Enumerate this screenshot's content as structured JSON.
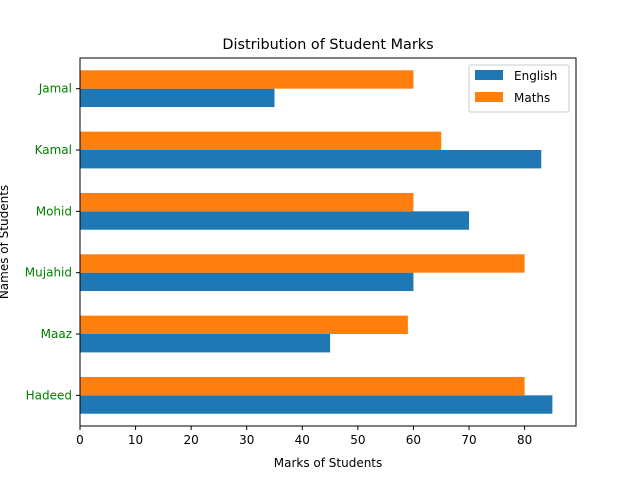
{
  "chart_data": {
    "type": "bar",
    "orientation": "horizontal",
    "title": "Distribution of Student Marks",
    "xlabel": "Marks of Students",
    "ylabel": "Names of Students",
    "categories": [
      "Hadeed",
      "Maaz",
      "Mujahid",
      "Mohid",
      "Kamal",
      "Jamal"
    ],
    "category_label_color": "#008000",
    "series": [
      {
        "name": "English",
        "color": "#1f77b4",
        "values": [
          85,
          45,
          60,
          70,
          83,
          35
        ]
      },
      {
        "name": "Maths",
        "color": "#ff7f0e",
        "values": [
          80,
          59,
          80,
          60,
          65,
          60
        ]
      }
    ],
    "xlim": [
      0,
      89.25
    ],
    "xticks": [
      0,
      10,
      20,
      30,
      40,
      50,
      60,
      70,
      80
    ],
    "grid": false,
    "legend": "top-right"
  }
}
